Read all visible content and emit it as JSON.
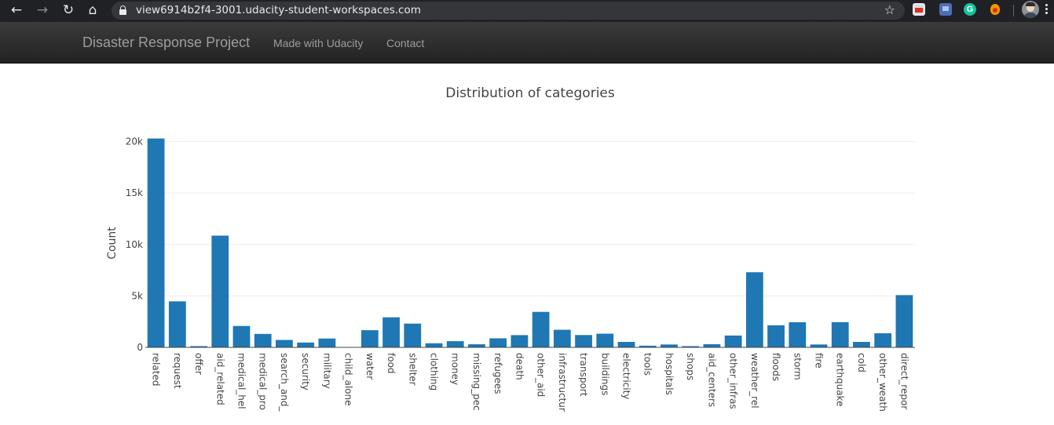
{
  "browser": {
    "url": "view6914b2f4-3001.udacity-student-workspaces.com",
    "back_icon": "arrow-left-icon",
    "forward_icon": "arrow-right-icon",
    "reload_icon": "reload-icon",
    "home_icon": "home-icon",
    "bookmark_icon": "star-icon",
    "extension_3_letter": "G"
  },
  "navbar": {
    "brand": "Disaster Response Project",
    "links": [
      "Made with Udacity",
      "Contact"
    ]
  },
  "chart_data": {
    "type": "bar",
    "title": "Distribution of categories",
    "xlabel": "",
    "ylabel": "Count",
    "ylim": [
      0,
      20500
    ],
    "yticks": [
      0,
      5000,
      10000,
      15000,
      20000
    ],
    "ytick_labels": [
      "0",
      "5k",
      "10k",
      "15k",
      "20k"
    ],
    "grid": true,
    "bar_color": "#1f77b4",
    "categories": [
      "related",
      "request",
      "offer",
      "aid_related",
      "medical_hel",
      "medical_pro",
      "search_and_",
      "security",
      "military",
      "child_alone",
      "water",
      "food",
      "shelter",
      "clothing",
      "money",
      "missing_pec",
      "refugees",
      "death",
      "other_aid",
      "infrastructur",
      "transport",
      "buildings",
      "electricity",
      "tools",
      "hospitals",
      "shops",
      "aid_centers",
      "other_infras",
      "weather_rel",
      "floods",
      "storm",
      "fire",
      "earthquake",
      "cold",
      "other_weath",
      "direct_repor"
    ],
    "values": [
      20300,
      4470,
      120,
      10860,
      2080,
      1310,
      720,
      470,
      860,
      0,
      1670,
      2920,
      2310,
      400,
      600,
      300,
      880,
      1190,
      3450,
      1710,
      1200,
      1330,
      530,
      160,
      280,
      120,
      310,
      1150,
      7300,
      2150,
      2440,
      280,
      2450,
      530,
      1370,
      5080
    ]
  }
}
